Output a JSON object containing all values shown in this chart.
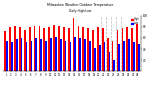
{
  "title": "Daily High/Low",
  "title2": "Milwaukee Weather Outdoor Temperature",
  "highs": [
    72,
    80,
    82,
    80,
    74,
    80,
    82,
    82,
    78,
    80,
    84,
    82,
    80,
    77,
    95,
    82,
    80,
    78,
    75,
    80,
    78,
    60,
    55,
    75,
    78,
    80,
    78,
    85
  ],
  "lows": [
    55,
    52,
    58,
    60,
    52,
    55,
    60,
    58,
    55,
    60,
    62,
    58,
    55,
    52,
    62,
    60,
    58,
    55,
    42,
    48,
    52,
    35,
    20,
    50,
    55,
    58,
    52,
    50
  ],
  "dashed_x": [
    19.5,
    20.5,
    21.5,
    22.5,
    23.5
  ],
  "high_color": "#ff0000",
  "low_color": "#0000ff",
  "bg_color": "#ffffff",
  "ylim_min": 0,
  "ylim_max": 100,
  "bar_width": 0.35,
  "legend_high": "High",
  "legend_low": "Low"
}
